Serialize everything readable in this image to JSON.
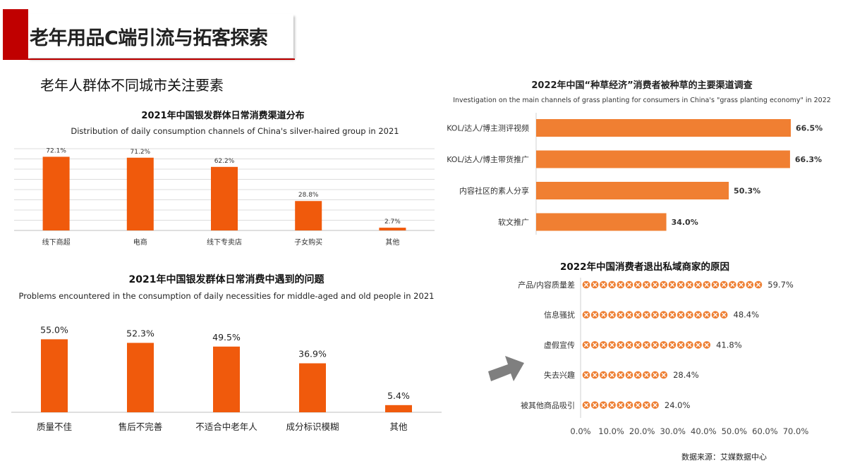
{
  "slide": {
    "title": "老年用品C端引流与拓客探索",
    "subtitle": "老年人群体不同城市关注要素",
    "source": "数据来源：艾媒数据中心"
  },
  "colors": {
    "accent": "#c00000",
    "bar_orange": "#f05a0c",
    "bar_orange2": "#f07f32",
    "icon_orange": "#ee7f33"
  },
  "chart_data": [
    {
      "id": "channels",
      "type": "bar",
      "title": "2021年中国银发群体日常消费渠道分布",
      "subtitle": "Distribution of daily consumption channels of China's silver-haired group in 2021",
      "categories": [
        "线下商超",
        "电商",
        "线下专卖店",
        "子女购买",
        "其他"
      ],
      "values": [
        72.1,
        71.2,
        62.2,
        28.8,
        2.7
      ],
      "value_labels": [
        "72.1%",
        "71.2%",
        "62.2%",
        "28.8%",
        "2.7%"
      ],
      "ylim": [
        0,
        80
      ],
      "grid": true
    },
    {
      "id": "problems",
      "type": "bar",
      "title": "2021年中国银发群体日常消费中遇到的问题",
      "subtitle": "Problems encountered in the consumption of daily necessities for middle-aged and old people in 2021",
      "categories": [
        "质量不佳",
        "售后不完善",
        "不适合中老年人",
        "成分标识模糊",
        "其他"
      ],
      "values": [
        55.0,
        52.3,
        49.5,
        36.9,
        5.4
      ],
      "value_labels": [
        "55.0%",
        "52.3%",
        "49.5%",
        "36.9%",
        "5.4%"
      ],
      "ylim": [
        0,
        60
      ],
      "grid": false
    },
    {
      "id": "grass",
      "type": "bar",
      "orientation": "horizontal",
      "title": "2022年中国“种草经济”消费者被种草的主要渠道调查",
      "subtitle": "Investigation on the main channels of grass planting for consumers in China's \"grass planting economy\" in 2022",
      "categories": [
        "KOL/达人/博主测评视频",
        "KOL/达人/博主带货推广",
        "内容社区的素人分享",
        "软文推广"
      ],
      "values": [
        66.5,
        66.3,
        50.3,
        34.0
      ],
      "value_labels": [
        "66.5%",
        "66.3%",
        "50.3%",
        "34.0%"
      ],
      "xlim": [
        0,
        70
      ]
    },
    {
      "id": "exit",
      "type": "bar",
      "orientation": "horizontal",
      "title": "2022年中国消费者退出私域商家的原因",
      "categories": [
        "产品/内容质量差",
        "信息骚扰",
        "虚假宣传",
        "失去兴趣",
        "被其他商品吸引"
      ],
      "values": [
        59.7,
        48.4,
        41.8,
        28.4,
        24.0
      ],
      "value_labels": [
        "59.7%",
        "48.4%",
        "41.8%",
        "28.4%",
        "24.0%"
      ],
      "xlim": [
        0,
        70
      ],
      "xticks": [
        "0.0%",
        "10.0%",
        "20.0%",
        "30.0%",
        "40.0%",
        "50.0%",
        "60.0%",
        "70.0%"
      ],
      "marker": "circle-x-icon"
    }
  ]
}
